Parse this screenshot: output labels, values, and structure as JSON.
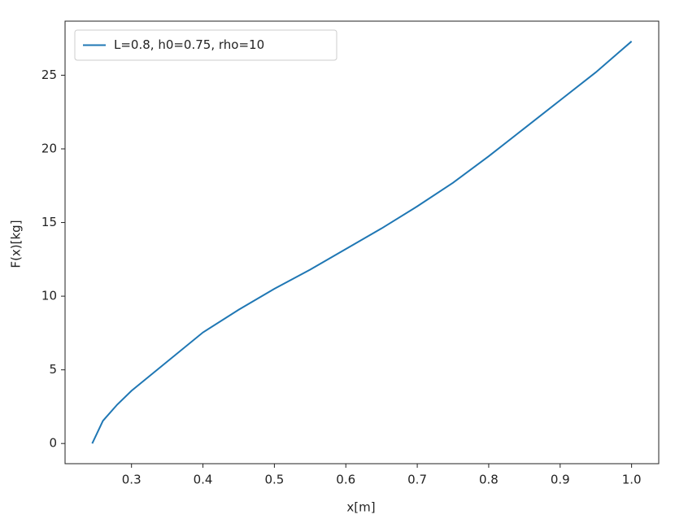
{
  "chart_data": {
    "type": "line",
    "xlabel": "x[m]",
    "ylabel": "F(x)[kg]",
    "x": [
      0.245,
      0.26,
      0.28,
      0.3,
      0.35,
      0.4,
      0.45,
      0.5,
      0.55,
      0.6,
      0.65,
      0.7,
      0.75,
      0.8,
      0.85,
      0.9,
      0.95,
      1.0
    ],
    "series": [
      {
        "name": "L=0.8, h0=0.75, rho=10",
        "color": "#1f77b4",
        "values": [
          0,
          1.54,
          2.64,
          3.58,
          5.56,
          7.54,
          9.08,
          10.5,
          11.8,
          13.2,
          14.6,
          16.1,
          17.7,
          19.5,
          21.4,
          23.3,
          25.2,
          27.3
        ]
      }
    ],
    "xlim": [
      0.207,
      1.038
    ],
    "ylim": [
      -1.37,
      28.67
    ],
    "xticks": [
      0.3,
      0.4,
      0.5,
      0.6,
      0.7,
      0.8,
      0.9,
      {
        "value": 1,
        "label": "1.0"
      }
    ],
    "yticks": [
      0,
      5,
      10,
      15,
      20,
      25
    ],
    "legend": "upper-left",
    "grid": false
  }
}
